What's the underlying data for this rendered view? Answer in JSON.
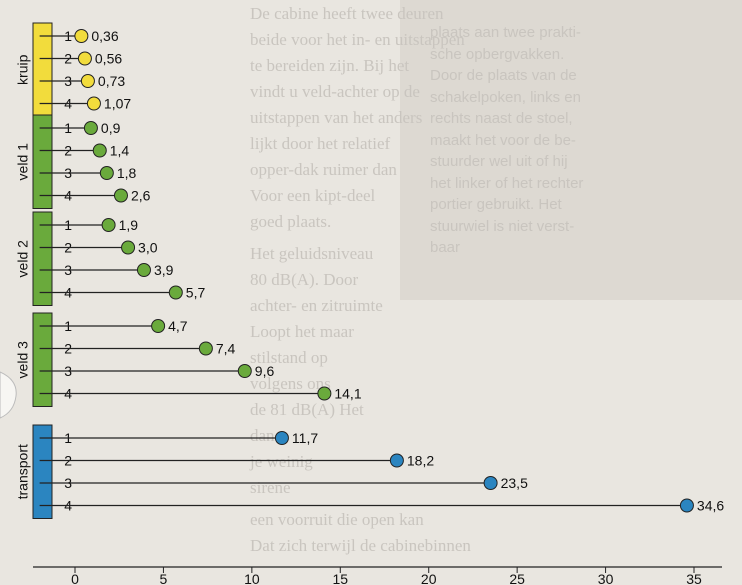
{
  "chart_data": {
    "type": "lollipop",
    "title": "",
    "xlabel": "",
    "ylabel": "",
    "xlim": [
      -2,
      35.5
    ],
    "x_ticks": [
      0,
      5,
      10,
      15,
      20,
      25,
      30,
      35
    ],
    "groups": [
      {
        "name": "kruip",
        "color": "#f2dc3c",
        "rows": [
          {
            "label": "1",
            "value": 0.36,
            "text": "0,36"
          },
          {
            "label": "2",
            "value": 0.56,
            "text": "0,56"
          },
          {
            "label": "3",
            "value": 0.73,
            "text": "0,73"
          },
          {
            "label": "4",
            "value": 1.07,
            "text": "1,07"
          }
        ]
      },
      {
        "name": "veld 1",
        "color": "#6aaa3c",
        "rows": [
          {
            "label": "1",
            "value": 0.9,
            "text": "0,9"
          },
          {
            "label": "2",
            "value": 1.4,
            "text": "1,4"
          },
          {
            "label": "3",
            "value": 1.8,
            "text": "1,8"
          },
          {
            "label": "4",
            "value": 2.6,
            "text": "2,6"
          }
        ]
      },
      {
        "name": "veld 2",
        "color": "#6aaa3c",
        "rows": [
          {
            "label": "1",
            "value": 1.9,
            "text": "1,9"
          },
          {
            "label": "2",
            "value": 3.0,
            "text": "3,0"
          },
          {
            "label": "3",
            "value": 3.9,
            "text": "3,9"
          },
          {
            "label": "4",
            "value": 5.7,
            "text": "5,7"
          }
        ]
      },
      {
        "name": "veld 3",
        "color": "#6aaa3c",
        "rows": [
          {
            "label": "1",
            "value": 4.7,
            "text": "4,7"
          },
          {
            "label": "2",
            "value": 7.4,
            "text": "7,4"
          },
          {
            "label": "3",
            "value": 9.6,
            "text": "9,6"
          },
          {
            "label": "4",
            "value": 14.1,
            "text": "14,1"
          }
        ]
      },
      {
        "name": "transport",
        "color": "#2b85c0",
        "rows": [
          {
            "label": "1",
            "value": 11.7,
            "text": "11,7"
          },
          {
            "label": "2",
            "value": 18.2,
            "text": "18,2"
          },
          {
            "label": "3",
            "value": 23.5,
            "text": "23,5"
          },
          {
            "label": "4",
            "value": 34.6,
            "text": "34,6"
          }
        ]
      }
    ]
  },
  "background_text": {
    "left_column": [
      "De cabine heeft twee deuren",
      "beide voor het in- en uitstappen",
      "te bereiden zijn. Bij het",
      "vindt u veld-achter op de",
      "uitstappen van het anders",
      "lijkt door het relatief",
      "opper-dak ruimer dan",
      "Voor een kipt-deel",
      "goed plaats.",
      "Het geluidsniveau",
      "80 dB(A). Door",
      "achter- en zitruimte",
      "Loopt het maar",
      "stilstand op",
      "volgens ons",
      "de 81 dB(A) Het",
      "dan",
      "je weinig",
      "sirene",
      "een voorruit die open kan",
      "Dat zich terwijl de cabinebinnen"
    ],
    "right_column": [
      "plaats aan twee prakti-",
      "sche opbergvakken.",
      "Door de plaats van de",
      "schakelpoken, links en",
      "rechts naast de stoel,",
      "maakt het voor de be-",
      "stuurder wel uit of hij",
      "het linker of het rechter",
      "portier gebruikt. Het",
      "stuurwiel is niet verst-",
      "baar"
    ]
  }
}
